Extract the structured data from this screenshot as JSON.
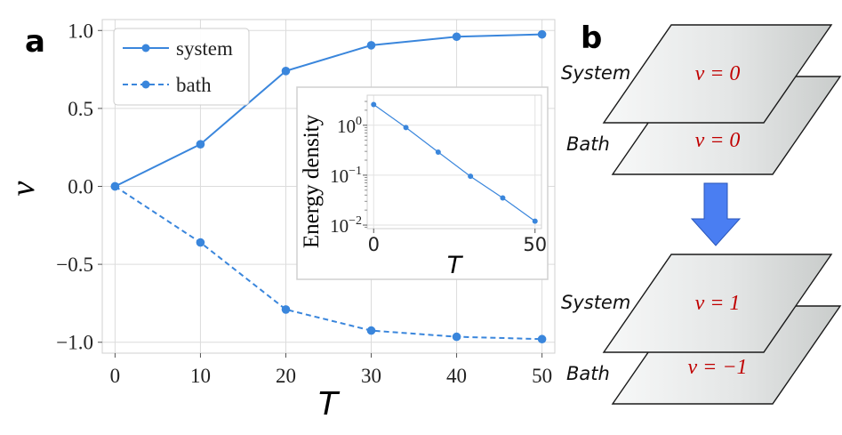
{
  "panel_labels": {
    "a": "a",
    "b": "b"
  },
  "chart_data": [
    {
      "type": "line",
      "xlabel": "T",
      "ylabel": "ν",
      "x": [
        0,
        10,
        20,
        30,
        40,
        50
      ],
      "xlim": [
        -1.5,
        51.5
      ],
      "ylim": [
        -1.07,
        1.07
      ],
      "xticks": [
        "0",
        "10",
        "20",
        "30",
        "40",
        "50"
      ],
      "yticks": [
        "1.0",
        "0.5",
        "0.0",
        "−0.5",
        "−1.0"
      ],
      "ytick_values": [
        1.0,
        0.5,
        0.0,
        -0.5,
        -1.0
      ],
      "grid": true,
      "legend_position": "top-left",
      "color": "#3a86dc",
      "series": [
        {
          "name": "system",
          "style": "solid",
          "values": [
            0.0,
            0.27,
            0.74,
            0.905,
            0.96,
            0.975
          ]
        },
        {
          "name": "bath",
          "style": "dashed",
          "values": [
            0.0,
            -0.36,
            -0.79,
            -0.925,
            -0.965,
            -0.98
          ]
        }
      ]
    },
    {
      "type": "line",
      "inset": true,
      "xlabel": "T",
      "ylabel": "Energy density",
      "yscale": "log",
      "x": [
        0,
        10,
        20,
        30,
        40,
        50
      ],
      "values": [
        2.6,
        0.9,
        0.29,
        0.095,
        0.035,
        0.012
      ],
      "xlim": [
        -2,
        52
      ],
      "ylim": [
        0.0085,
        4.0
      ],
      "xticks": [
        "0",
        "50"
      ],
      "xtick_values": [
        0,
        50
      ],
      "yticks": [
        {
          "base": "10",
          "exp": "0"
        },
        {
          "base": "10",
          "exp": "−1"
        },
        {
          "base": "10",
          "exp": "−2"
        }
      ],
      "ytick_values": [
        1,
        0.1,
        0.01
      ],
      "grid": true,
      "color": "#3a86dc"
    }
  ],
  "diagram": {
    "arrow_color": "#4a7ef2",
    "formula_color": "#c00000",
    "before": {
      "system_label": "System",
      "bath_label": "Bath",
      "system_nu": "ν = 0",
      "bath_nu": "ν = 0"
    },
    "after": {
      "system_label": "System",
      "bath_label": "Bath",
      "system_nu": "ν = 1",
      "bath_nu": "ν = −1"
    }
  }
}
